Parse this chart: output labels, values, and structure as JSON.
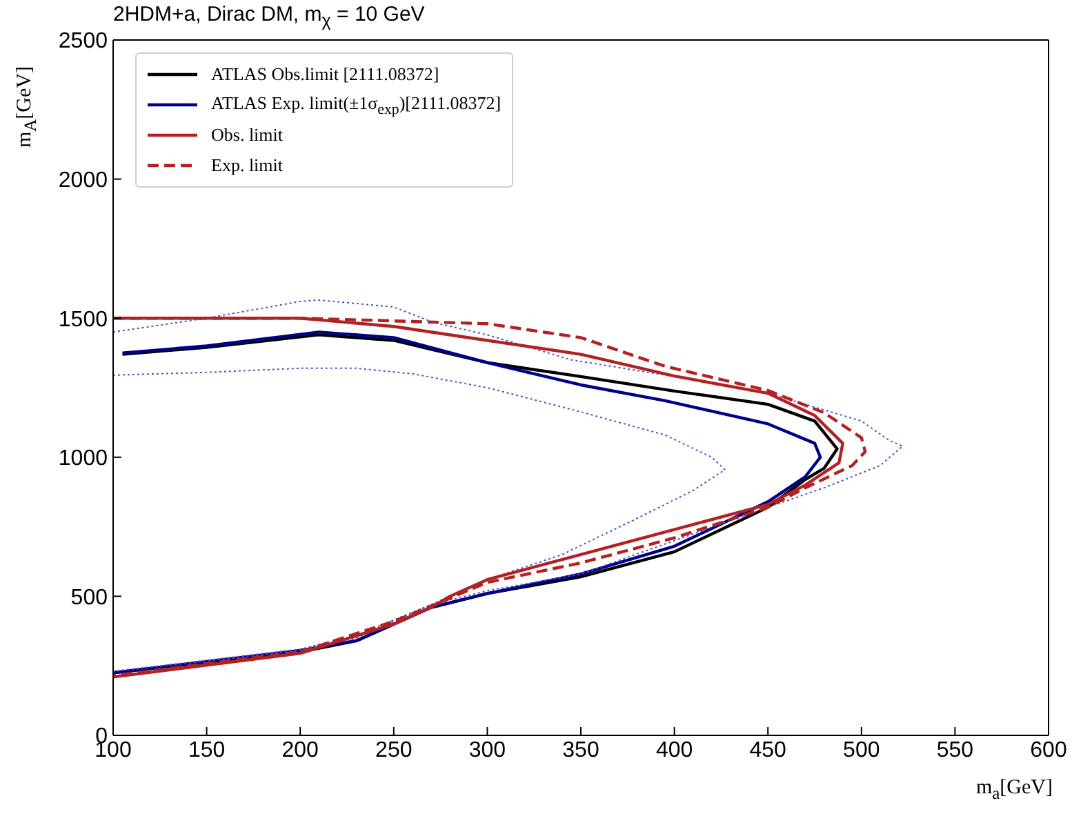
{
  "chart_data": {
    "type": "line",
    "title": "2HDM+a, Dirac DM, m$_{χ}$ = 10 GeV",
    "xlabel": "m$_{a}$[GeV]",
    "ylabel": "m$_{A}$[GeV]",
    "xlim": [
      100,
      600
    ],
    "xticks": [
      100,
      150,
      200,
      250,
      300,
      350,
      400,
      450,
      500,
      550,
      600
    ],
    "ylim": [
      0,
      2500
    ],
    "yticks": [
      0,
      500,
      1000,
      1500,
      2000,
      2500
    ],
    "legend": "top left",
    "marker": "none",
    "series": [
      {
        "name": "ATLAS  Obs.limit [2111.08372]",
        "color": "#000000",
        "line_style": "solid",
        "x": [
          105,
          150,
          210,
          250,
          300,
          350,
          400,
          450,
          475,
          487,
          480,
          470,
          450,
          400,
          350,
          300,
          270,
          230,
          200,
          100
        ],
        "values": [
          1370,
          1395,
          1440,
          1420,
          1340,
          1290,
          1238,
          1190,
          1130,
          1030,
          960,
          920,
          820,
          660,
          570,
          510,
          460,
          340,
          300,
          225
        ]
      },
      {
        "name": "ATLAS  Exp. limit(±1σ$_{exp}$)[2111.08372]",
        "color": "#00008b",
        "line_style": "solid",
        "x": [
          105,
          150,
          210,
          250,
          300,
          350,
          395,
          450,
          475,
          478,
          470,
          450,
          400,
          350,
          300,
          270,
          230,
          200,
          100
        ],
        "values": [
          1375,
          1400,
          1450,
          1430,
          1340,
          1260,
          1203,
          1120,
          1050,
          1000,
          930,
          840,
          680,
          580,
          510,
          460,
          340,
          305,
          225
        ]
      },
      {
        "color": "#5050c8",
        "line_style": "dotted",
        "x": [
          100,
          150,
          200,
          210,
          250,
          271,
          300,
          345,
          400,
          450,
          500,
          515,
          522,
          510,
          480,
          450,
          400,
          350,
          300,
          270,
          230,
          200,
          100
        ],
        "values": [
          1450,
          1500,
          1560,
          1565,
          1540,
          1485,
          1440,
          1350,
          1290,
          1230,
          1130,
          1060,
          1040,
          970,
          890,
          820,
          700,
          580,
          520,
          470,
          350,
          305,
          230
        ]
      },
      {
        "color": "#5050c8",
        "line_style": "dotted",
        "x": [
          100,
          150,
          200,
          230,
          260,
          300,
          350,
          395,
          420,
          427,
          410,
          380,
          340,
          300,
          270,
          230,
          200,
          100
        ],
        "values": [
          1295,
          1305,
          1320,
          1320,
          1300,
          1250,
          1163,
          1080,
          1000,
          955,
          880,
          780,
          650,
          560,
          470,
          360,
          310,
          230
        ]
      },
      {
        "name": "Obs. limit",
        "color": "#b22222",
        "line_style": "solid",
        "x": [
          100,
          200,
          250,
          300,
          350,
          400,
          450,
          475,
          490,
          488,
          470,
          450,
          400,
          350,
          300,
          280,
          270,
          250,
          200,
          100
        ],
        "values": [
          1500,
          1500,
          1470,
          1420,
          1370,
          1292,
          1230,
          1150,
          1050,
          980,
          900,
          830,
          740,
          650,
          560,
          500,
          460,
          400,
          295,
          210
        ]
      },
      {
        "name": "Exp. limit",
        "color": "#b22222",
        "line_style": "dashed",
        "x": [
          100,
          200,
          250,
          300,
          350,
          395,
          450,
          480,
          500,
          502,
          495,
          470,
          450,
          400,
          350,
          300,
          270,
          250,
          200,
          100
        ],
        "values": [
          1500,
          1500,
          1490,
          1480,
          1430,
          1327,
          1240,
          1160,
          1070,
          1020,
          970,
          890,
          820,
          710,
          620,
          550,
          465,
          410,
          300,
          215
        ]
      }
    ]
  }
}
